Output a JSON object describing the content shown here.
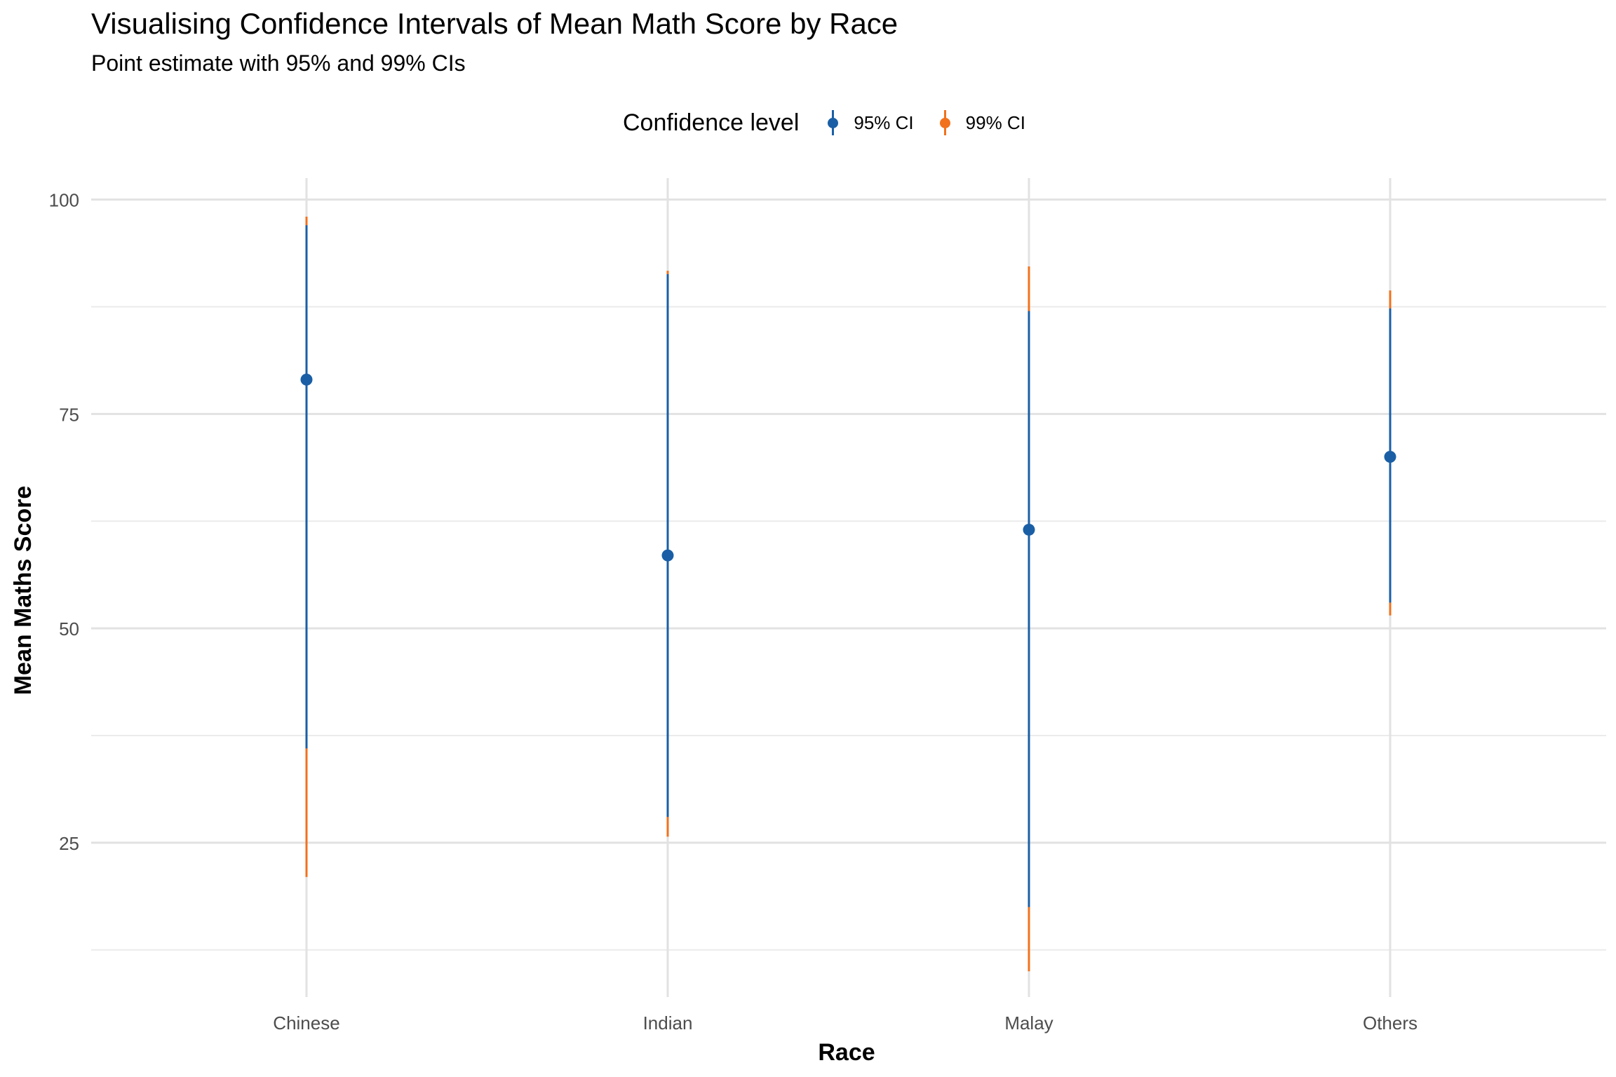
{
  "chart_data": {
    "type": "errorbar",
    "title": "Visualising Confidence Intervals of Mean Math Score by Race",
    "subtitle": "Point estimate with 95% and 99% CIs",
    "xlabel": "Race",
    "ylabel": "Mean Maths Score",
    "categories": [
      "Chinese",
      "Indian",
      "Malay",
      "Others"
    ],
    "y_ticks": [
      25,
      50,
      75,
      100
    ],
    "ylim": [
      7,
      102.5
    ],
    "grid": true,
    "legend": {
      "title": "Confidence level",
      "position": "top",
      "entries": [
        "95% CI",
        "99% CI"
      ]
    },
    "series": [
      {
        "name": "95% CI",
        "color": "#1a5fa6",
        "estimate": [
          79,
          58.5,
          61.5,
          70
        ],
        "lower": [
          36,
          28,
          17.5,
          53
        ],
        "upper": [
          97,
          91.3,
          87,
          87.3
        ]
      },
      {
        "name": "99% CI",
        "color": "#f2711c",
        "estimate": [
          79,
          58.5,
          61.5,
          70
        ],
        "lower": [
          21,
          25.7,
          10,
          51.5
        ],
        "upper": [
          98,
          91.7,
          92.2,
          89.4
        ]
      }
    ]
  }
}
